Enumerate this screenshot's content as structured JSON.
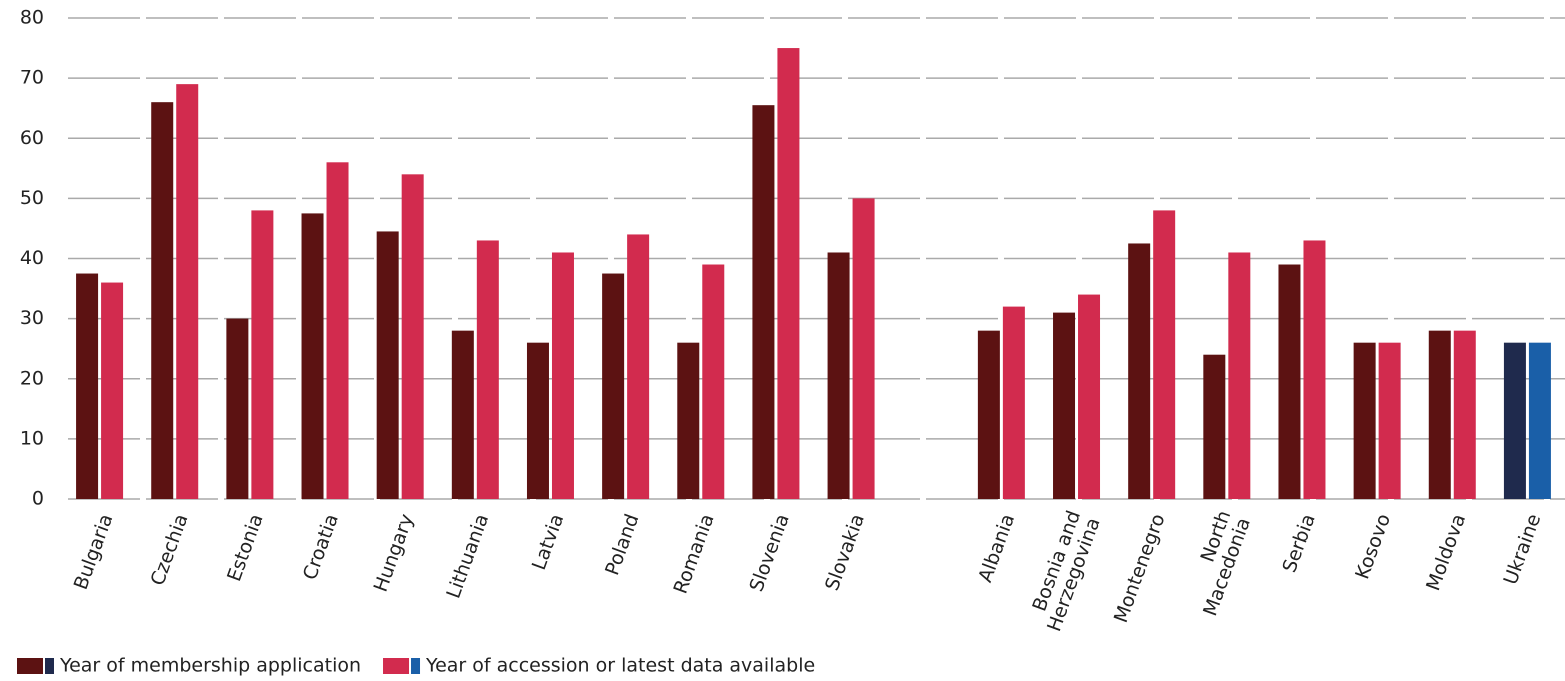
{
  "chart_data": {
    "type": "bar",
    "categories": [
      "Bulgaria",
      "Czechia",
      "Estonia",
      "Croatia",
      "Hungary",
      "Lithuania",
      "Latvia",
      "Poland",
      "Romania",
      "Slovenia",
      "Slovakia",
      null,
      "Albania",
      "Bosnia and Herzegovina",
      "Montenegro",
      "North Macedonia",
      "Serbia",
      "Kosovo",
      "Moldova",
      "Ukraine"
    ],
    "series": [
      {
        "name": "Year of membership application",
        "colors": [
          "#5c1212",
          "#5c1212",
          "#5c1212",
          "#5c1212",
          "#5c1212",
          "#5c1212",
          "#5c1212",
          "#5c1212",
          "#5c1212",
          "#5c1212",
          "#5c1212",
          "#5c1212",
          "#5c1212",
          "#5c1212",
          "#5c1212",
          "#5c1212",
          "#5c1212",
          "#5c1212",
          "#5c1212",
          "#1f2a4d"
        ],
        "values": [
          37.5,
          66,
          30,
          47.5,
          44.5,
          28,
          26,
          37.5,
          26,
          65.5,
          41,
          null,
          28,
          31,
          42.5,
          24,
          39,
          26,
          28,
          26
        ]
      },
      {
        "name": "Year of accession or latest data available",
        "colors": [
          "#d22b4e",
          "#d22b4e",
          "#d22b4e",
          "#d22b4e",
          "#d22b4e",
          "#d22b4e",
          "#d22b4e",
          "#d22b4e",
          "#d22b4e",
          "#d22b4e",
          "#d22b4e",
          "#d22b4e",
          "#d22b4e",
          "#d22b4e",
          "#d22b4e",
          "#d22b4e",
          "#d22b4e",
          "#d22b4e",
          "#d22b4e",
          "#1a5fa8"
        ],
        "values": [
          36,
          69,
          48,
          56,
          54,
          43,
          41,
          44,
          39,
          75,
          50,
          null,
          32,
          34,
          48,
          41,
          43,
          26,
          28,
          26
        ]
      }
    ],
    "ylim": [
      0,
      80
    ],
    "yticks": [
      0,
      10,
      20,
      30,
      40,
      50,
      60,
      70,
      80
    ],
    "grid": true
  }
}
